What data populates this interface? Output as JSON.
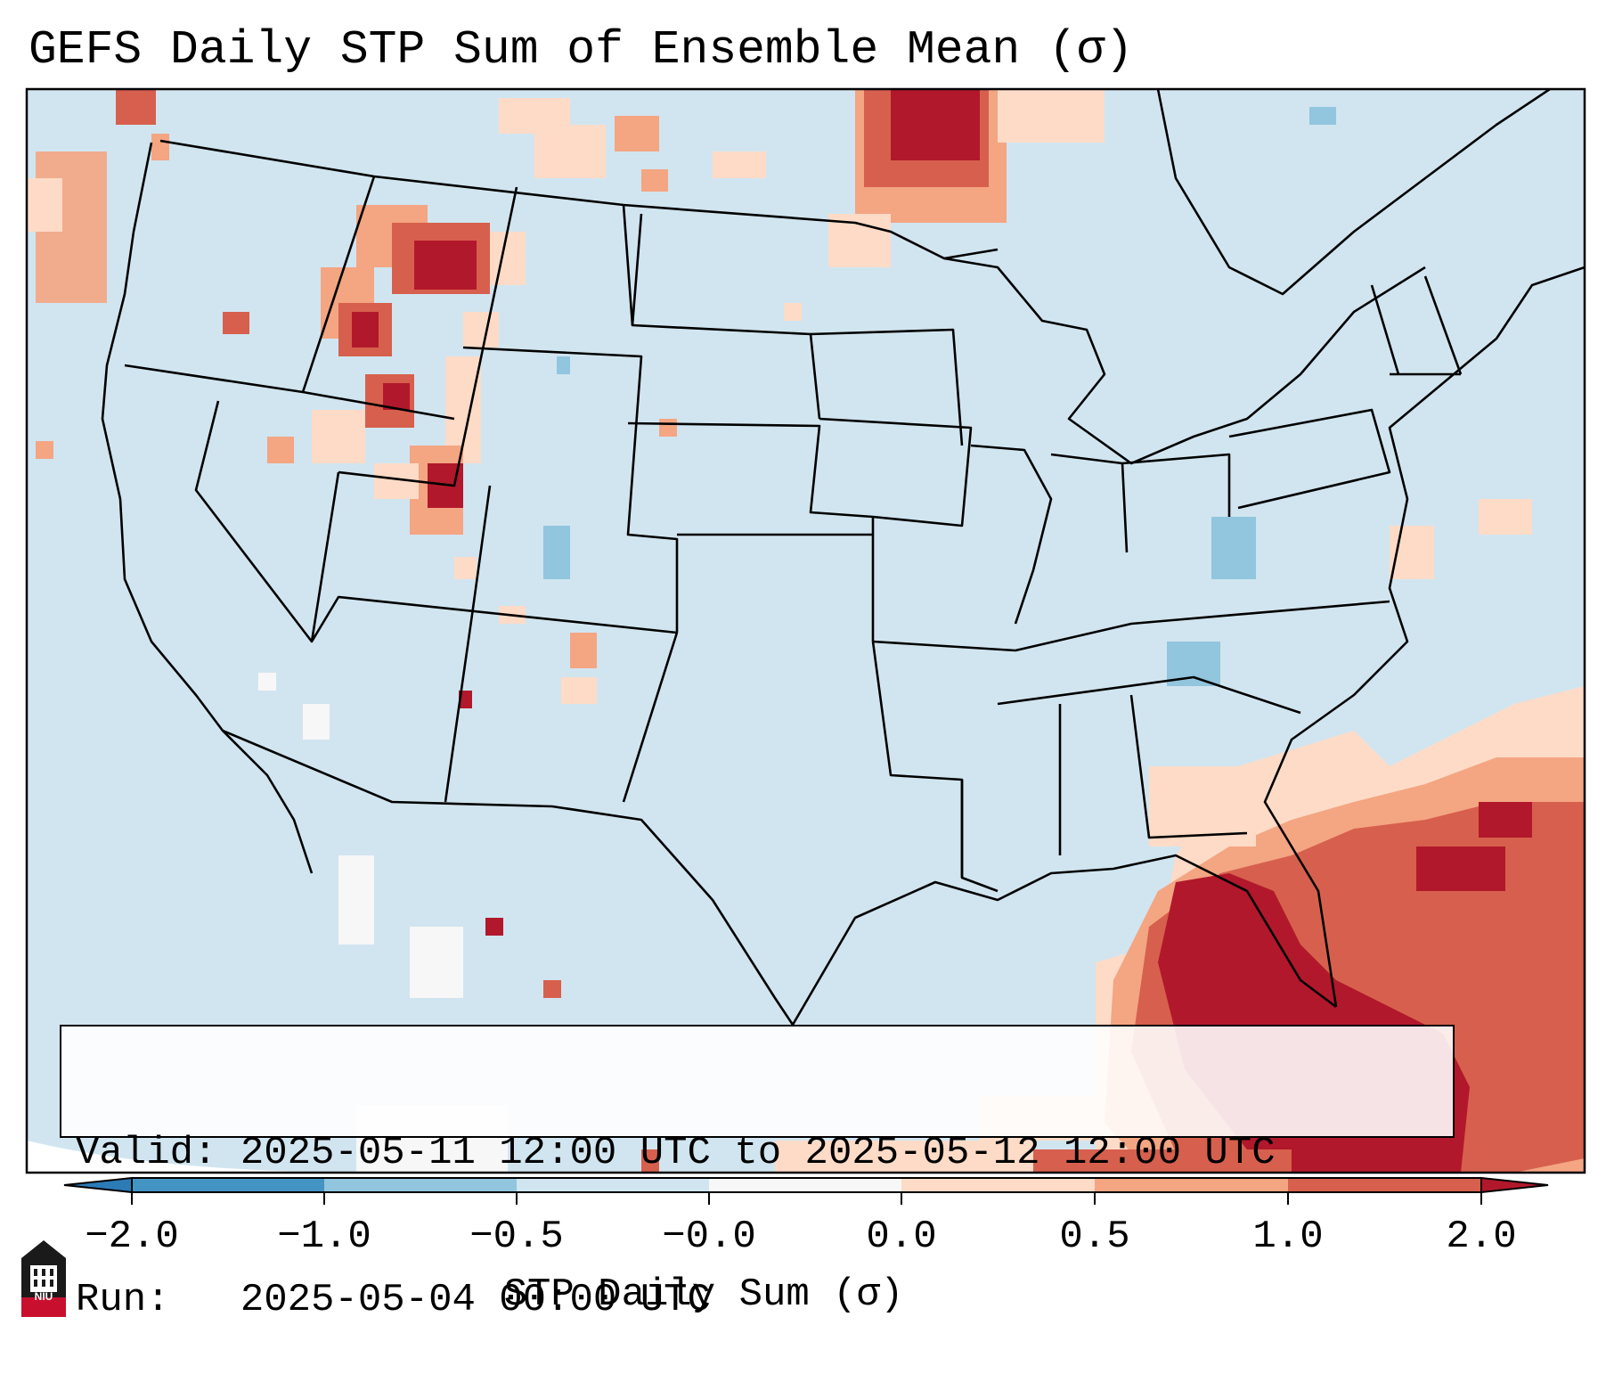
{
  "title": "GEFS Daily STP Sum of Ensemble Mean (σ)",
  "info": {
    "valid_line": "Valid: 2025-05-11 12:00 UTC to 2025-05-12 12:00 UTC",
    "run_line": "Run:   2025-05-04 00:00 UTC"
  },
  "colorbar": {
    "label": "STP Daily Sum (σ)",
    "ticks": [
      "−2.0",
      "−1.0",
      "−0.5",
      "−0.0",
      "0.0",
      "0.5",
      "1.0",
      "2.0"
    ],
    "colors": {
      "extend_low": "#2c7bb6",
      "bin_1": "#4393c3",
      "bin_2": "#92c5de",
      "bin_3": "#d1e5f0",
      "bin_4": "#f7f7f7",
      "bin_5": "#fddbc7",
      "bin_6": "#f4a582",
      "bin_7": "#d6604d",
      "extend_high": "#b2182b"
    }
  },
  "map": {
    "background_color": "#d1e5f0",
    "field_levels": [
      "low-1.0",
      "low-0.5",
      "near-zero",
      "0.0-0.5",
      "0.5-1.0",
      "1.0-2.0",
      ">2.0"
    ]
  },
  "logo": {
    "text": "NIU",
    "icon": "niu-castle-icon"
  }
}
